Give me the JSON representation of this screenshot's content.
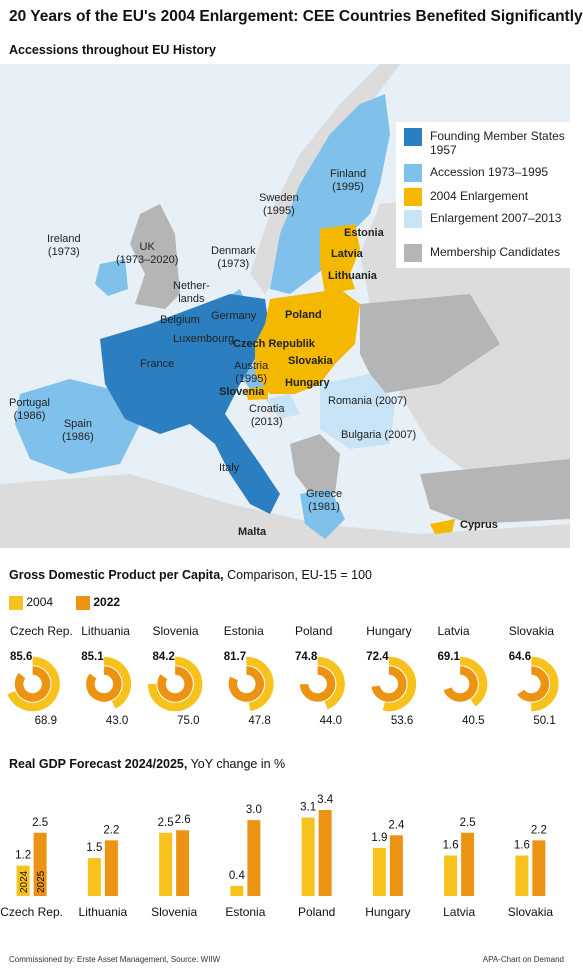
{
  "title": "20 Years of the EU's 2004 Enlargement: CEE Countries Benefited Significantly",
  "map_section": {
    "title": "Accessions throughout EU History",
    "legend": [
      {
        "label": "Founding Member States 1957",
        "color": "#2b7fc0"
      },
      {
        "label": "Accession 1973–1995",
        "color": "#7fc1ea"
      },
      {
        "label": "2004 Enlargement",
        "color": "#f4b800"
      },
      {
        "label": "Enlargement 2007–2013",
        "color": "#c7e3f5"
      },
      {
        "label": "Membership Candidates",
        "color": "#b5b5b5"
      }
    ],
    "labels": {
      "finland": "Finland",
      "finland_year": "(1995)",
      "sweden": "Sweden",
      "sweden_year": "(1995)",
      "estonia": "Estonia",
      "latvia": "Latvia",
      "lithuania": "Lithuania",
      "ireland": "Ireland",
      "ireland_year": "(1973)",
      "uk": "UK",
      "uk_year": "(1973–2020)",
      "denmark": "Denmark",
      "denmark_year": "(1973)",
      "netherlands_1": "Nether-",
      "netherlands_2": "lands",
      "belgium": "Belgium",
      "germany": "Germany",
      "poland": "Poland",
      "luxembourg": "Luxembourg",
      "czech": "Czech Republik",
      "france": "France",
      "slovakia": "Slovakia",
      "austria": "Austria",
      "austria_year": "(1995)",
      "hungary": "Hungary",
      "slovenia": "Slovenia",
      "portugal": "Portugal",
      "portugal_year": "(1986)",
      "spain": "Spain",
      "spain_year": "(1986)",
      "croatia": "Croatia",
      "croatia_year": "(2013)",
      "romania": "Romania (2007)",
      "bulgaria": "Bulgaria (2007)",
      "italy": "Italy",
      "greece": "Greece",
      "greece_year": "(1981)",
      "malta": "Malta",
      "cyprus": "Cyprus"
    }
  },
  "gdp_section": {
    "title_bold": "Gross Domestic Product per Capita,",
    "title_rest": " Comparison, EU-15 = 100",
    "legend_2004": "2004",
    "legend_2022": "2022",
    "color_2004": "#f7c21b",
    "color_2022": "#ec9313"
  },
  "forecast_section": {
    "title_bold": "Real GDP Forecast 2024/2025,",
    "title_rest": " YoY change in %",
    "bar_label_2024": "2024",
    "bar_label_2025": "2025",
    "color_2024": "#f7c21b",
    "color_2025": "#ec9313"
  },
  "footer": {
    "left": "Commissioned by: Erste Asset Management, Source: WIIW",
    "right": "APA-Chart on Demand"
  },
  "chart_data": [
    {
      "type": "pie",
      "title": "Gross Domestic Product per Capita, Comparison, EU-15 = 100",
      "categories": [
        "Czech Rep.",
        "Lithuania",
        "Slovenia",
        "Estonia",
        "Poland",
        "Hungary",
        "Latvia",
        "Slovakia"
      ],
      "series": [
        {
          "name": "2004",
          "values": [
            68.9,
            43.0,
            75.0,
            47.8,
            44.0,
            53.6,
            40.5,
            50.1
          ]
        },
        {
          "name": "2022",
          "values": [
            85.6,
            85.1,
            84.2,
            81.7,
            74.8,
            72.4,
            69.1,
            64.6
          ]
        }
      ]
    },
    {
      "type": "bar",
      "title": "Real GDP Forecast 2024/2025, YoY change in %",
      "categories": [
        "Czech Rep.",
        "Lithuania",
        "Slovenia",
        "Estonia",
        "Poland",
        "Hungary",
        "Latvia",
        "Slovakia"
      ],
      "series": [
        {
          "name": "2024",
          "values": [
            1.2,
            1.5,
            2.5,
            0.4,
            3.1,
            1.9,
            1.6,
            1.6
          ]
        },
        {
          "name": "2025",
          "values": [
            2.5,
            2.2,
            2.6,
            3.0,
            3.4,
            2.4,
            2.5,
            2.2
          ]
        }
      ],
      "ylim": [
        0,
        3.4
      ]
    }
  ]
}
